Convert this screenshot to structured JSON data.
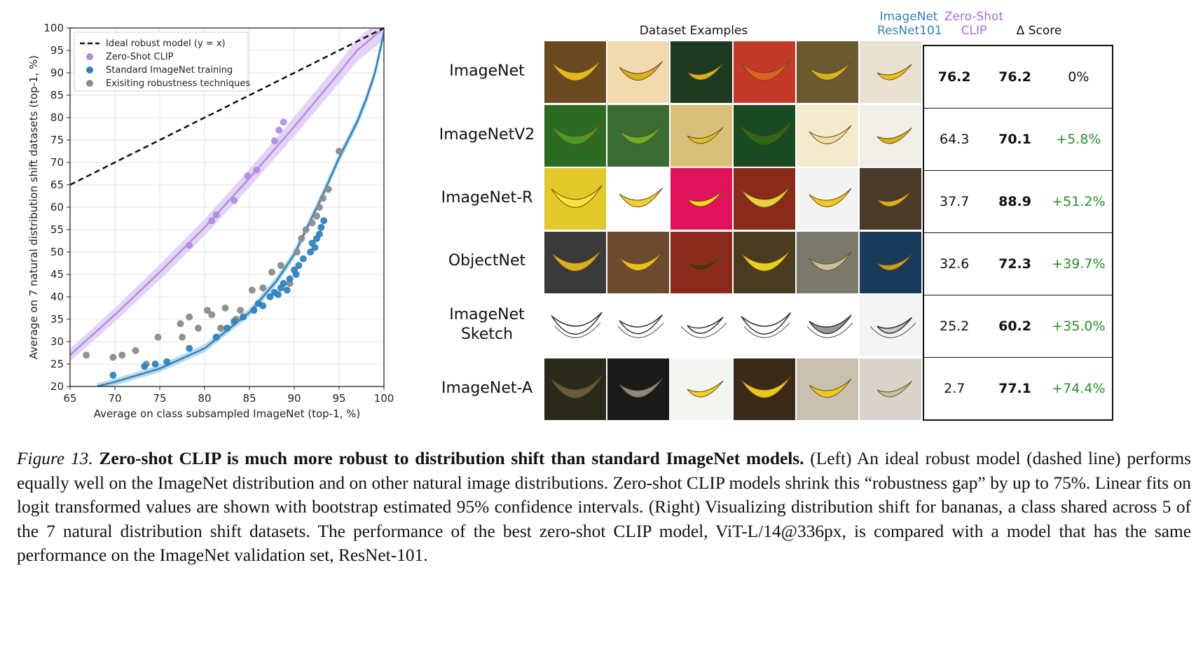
{
  "chart_data": {
    "type": "scatter",
    "xlabel": "Average on class subsampled ImageNet (top-1, %)",
    "ylabel": "Average on 7 natural distribution shift datasets (top-1, %)",
    "xlim": [
      65,
      100
    ],
    "ylim": [
      20,
      100
    ],
    "xticks": [
      65,
      70,
      75,
      80,
      85,
      90,
      95,
      100
    ],
    "yticks": [
      20,
      25,
      30,
      35,
      40,
      45,
      50,
      55,
      60,
      65,
      70,
      75,
      80,
      85,
      90,
      95,
      100
    ],
    "grid": true,
    "legend_position": "top-left",
    "legend": [
      "Ideal robust model (y = x)",
      "Zero-Shot CLIP",
      "Standard ImageNet training",
      "Exisiting robustness techniques"
    ],
    "colors": {
      "ideal": "#111111",
      "clip": "#b48ee0",
      "standard": "#3182bd",
      "robust": "#8c8c8c",
      "clip_band": "#dcc9f2",
      "standard_band": "#a9cfe9"
    },
    "ideal_line": {
      "x": [
        65,
        100
      ],
      "y": [
        65,
        100
      ]
    },
    "clip_fit": {
      "x": [
        65,
        70,
        75,
        80,
        85,
        90,
        95,
        97,
        100
      ],
      "y": [
        27,
        36,
        45.5,
        55.5,
        66.5,
        78,
        90,
        95,
        100
      ]
    },
    "standard_fit": {
      "x": [
        68,
        70,
        75,
        80,
        85,
        88,
        90,
        93,
        95,
        97,
        98,
        99,
        100
      ],
      "y": [
        20,
        21,
        24,
        28.5,
        36.5,
        43.5,
        49.5,
        62,
        71,
        79,
        84,
        90,
        99
      ]
    },
    "series": [
      {
        "name": "Zero-Shot CLIP",
        "x": [
          78.3,
          80.8,
          81.3,
          83.3,
          84.8,
          85.8,
          87.8,
          88.3,
          88.8
        ],
        "y": [
          51.5,
          57,
          58.3,
          61.5,
          67,
          68.3,
          74.8,
          77.2,
          79
        ]
      },
      {
        "name": "Standard ImageNet training",
        "x": [
          69.8,
          73.3,
          74.5,
          75.8,
          78.3,
          81.3,
          82.5,
          83.3,
          84.3,
          85.5,
          86.0,
          86.5,
          87.3,
          87.8,
          88.2,
          88.5,
          88.8,
          89.2,
          89.5,
          90.0,
          90.2,
          90.5,
          91.0,
          91.8,
          92.0,
          92.3,
          92.5,
          92.8,
          93.0,
          93.3
        ],
        "y": [
          22.5,
          24.5,
          25,
          25.5,
          28.5,
          31,
          33,
          34.5,
          35.5,
          37,
          38.5,
          38,
          40,
          41,
          40.5,
          42,
          43,
          41.5,
          44,
          46,
          45,
          47,
          48.5,
          50,
          52,
          51,
          53,
          54,
          55.5,
          57
        ]
      },
      {
        "name": "Exisiting robustness techniques",
        "x": [
          66.8,
          69.8,
          70.8,
          72.3,
          73.5,
          74.8,
          77.3,
          77.5,
          78.3,
          79.3,
          80.3,
          80.8,
          81.8,
          82.3,
          83.5,
          84.0,
          85.3,
          86.5,
          87.5,
          88.5,
          89.5,
          90.3,
          90.8,
          91.3,
          92.0,
          92.5,
          92.8,
          93.2,
          93.8,
          95.0
        ],
        "y": [
          27,
          26.5,
          27,
          28,
          25,
          31,
          34,
          31,
          35.5,
          33,
          37,
          36,
          33,
          37.5,
          35,
          37,
          41.5,
          42,
          45.5,
          47,
          43,
          50,
          53,
          55,
          56.5,
          58,
          60,
          62,
          64,
          72.5
        ]
      }
    ]
  },
  "right_panel": {
    "column_headers": {
      "examples": "Dataset Examples",
      "resnet_line1": "ImageNet",
      "resnet_line2": "ResNet101",
      "clip_line1": "Zero-Shot",
      "clip_line2": "CLIP",
      "delta": "Δ Score"
    },
    "rows": [
      {
        "label_line1": "ImageNet",
        "label_line2": "",
        "resnet": "76.2",
        "clip": "76.2",
        "delta": "0%"
      },
      {
        "label_line1": "ImageNetV2",
        "label_line2": "",
        "resnet": "64.3",
        "clip": "70.1",
        "delta": "+5.8%"
      },
      {
        "label_line1": "ImageNet-R",
        "label_line2": "",
        "resnet": "37.7",
        "clip": "88.9",
        "delta": "+51.2%"
      },
      {
        "label_line1": "ObjectNet",
        "label_line2": "",
        "resnet": "32.6",
        "clip": "72.3",
        "delta": "+39.7%"
      },
      {
        "label_line1": "ImageNet",
        "label_line2": "Sketch",
        "resnet": "25.2",
        "clip": "60.2",
        "delta": "+35.0%"
      },
      {
        "label_line1": "ImageNet-A",
        "label_line2": "",
        "resnet": "2.7",
        "clip": "77.1",
        "delta": "+74.4%"
      }
    ],
    "header_colors": {
      "resnet": "#3182bd",
      "clip": "#a76fd8"
    }
  },
  "caption": {
    "fig_label": "Figure 13.",
    "title": "Zero-shot CLIP is much more robust to distribution shift than standard ImageNet models.",
    "body": "(Left) An ideal robust model (dashed line) performs equally well on the ImageNet distribution and on other natural image distributions. Zero-shot CLIP models shrink this “robustness gap” by up to 75%. Linear fits on logit transformed values are shown with bootstrap estimated 95% confidence intervals. (Right) Visualizing distribution shift for bananas, a class shared across 5 of the 7 natural distribution shift datasets. The performance of the best zero-shot CLIP model, ViT-L/14@336px, is compared with a model that has the same performance on the ImageNet validation set, ResNet-101."
  }
}
